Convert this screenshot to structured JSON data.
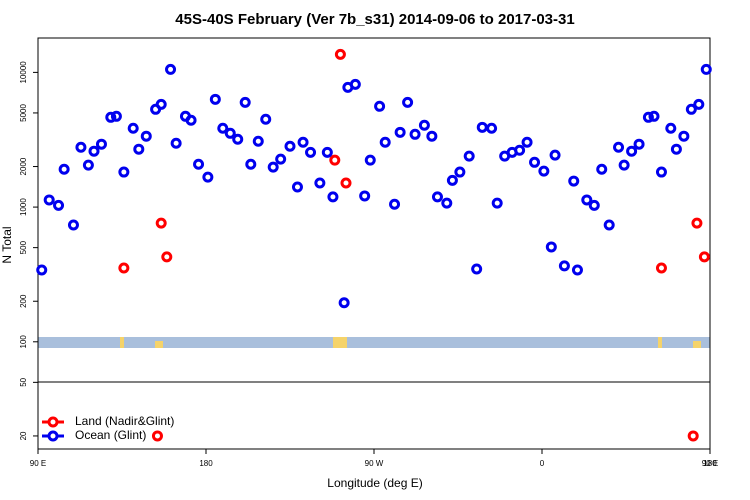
{
  "chart_data": {
    "type": "scatter",
    "title": "45S-40S February (Ver 7b_s31)   2014-09-06 to 2017-03-31",
    "x_label": "Longitude (deg E)",
    "y_label": "N Total",
    "xlim": [
      90,
      450
    ],
    "ylim": [
      16,
      18000
    ],
    "log_y": true,
    "legend": "bottomleft",
    "xticks": [
      {
        "value": 90,
        "label": "90 E"
      },
      180,
      {
        "value": 270,
        "label": "90 W"
      },
      {
        "value": 360,
        "label": "0"
      },
      {
        "value": 450,
        "label": "90 E"
      },
      {
        "value": 540,
        "label": "180"
      }
    ],
    "yticks": [
      20,
      50,
      100,
      200,
      500,
      1000,
      2000,
      5000,
      10000
    ],
    "series": [
      {
        "name": "Land (Nadir&Glint)",
        "color": "#ff0000",
        "x": [
          136,
          156,
          159,
          252,
          255,
          249,
          424,
          443,
          447,
          154,
          441
        ],
        "values": [
          353,
          760,
          427,
          13600,
          1510,
          2230,
          353,
          760,
          427,
          20,
          20
        ]
      },
      {
        "name": "Ocean (Glint)",
        "color": "#0000ee",
        "x": [
          92,
          96,
          101,
          104,
          109,
          113,
          117,
          120,
          124,
          129,
          132,
          136,
          141,
          144,
          148,
          153,
          156,
          161,
          164,
          169,
          172,
          176,
          181,
          185,
          189,
          193,
          197,
          201,
          204,
          208,
          212,
          216,
          220,
          225,
          229,
          232,
          236,
          241,
          245,
          248,
          254,
          256,
          260,
          265,
          268,
          273,
          276,
          281,
          284,
          288,
          292,
          297,
          301,
          304,
          309,
          312,
          316,
          321,
          325,
          328,
          333,
          336,
          340,
          344,
          348,
          352,
          356,
          361,
          365,
          367,
          372,
          377,
          379,
          384,
          388,
          392,
          396,
          401,
          404,
          408,
          412,
          417,
          420,
          424,
          429,
          432,
          436,
          440,
          444,
          448
        ],
        "values": [
          341,
          1130,
          1030,
          1910,
          736,
          2780,
          2050,
          2600,
          2930,
          4640,
          4720,
          1820,
          3850,
          2690,
          3360,
          5320,
          5790,
          10520,
          2980,
          4720,
          4410,
          2080,
          1670,
          6310,
          3850,
          3530,
          3190,
          5990,
          2080,
          3080,
          4490,
          1980,
          2270,
          2830,
          1410,
          3030,
          2550,
          1510,
          2550,
          1190,
          195,
          7740,
          8150,
          1210,
          2230,
          5600,
          3030,
          1050,
          3590,
          5990,
          3470,
          4050,
          3360,
          1190,
          1070,
          1580,
          1820,
          2390,
          347,
          3910,
          3850,
          1070,
          2390,
          2550,
          2640,
          3030,
          2150,
          1850,
          506,
          2430,
          366,
          1560,
          341,
          1130,
          1030,
          1910,
          736,
          2780,
          2050,
          2600,
          2930,
          4640,
          4720,
          1820,
          3850,
          2690,
          3360,
          5320,
          5790,
          10520
        ]
      }
    ]
  }
}
